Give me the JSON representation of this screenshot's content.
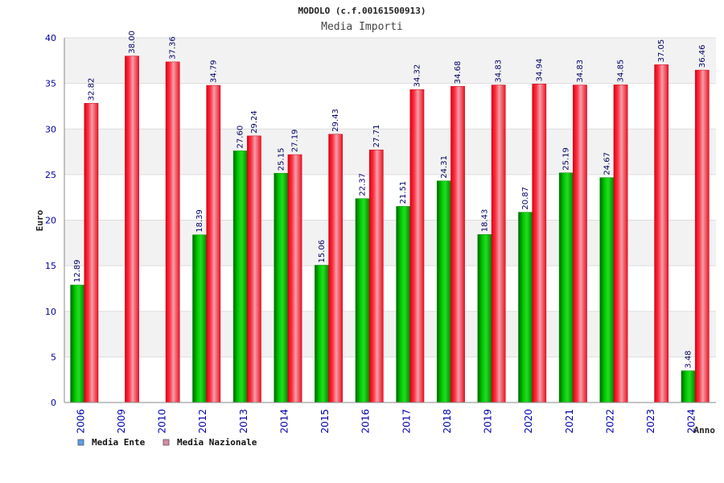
{
  "chart_data": {
    "type": "bar",
    "title": "MODOLO (c.f.00161500913)",
    "subtitle": "Media Importi",
    "xlabel": "Anno",
    "ylabel": "Euro",
    "ylim": [
      0,
      40
    ],
    "yticks": [
      "0",
      "5",
      "10",
      "15",
      "20",
      "25",
      "30",
      "35",
      "40"
    ],
    "categories": [
      "2006",
      "2009",
      "2010",
      "2012",
      "2013",
      "2014",
      "2015",
      "2016",
      "2017",
      "2018",
      "2019",
      "2020",
      "2021",
      "2022",
      "2023",
      "2024"
    ],
    "series": [
      {
        "name": "Media Ente",
        "color": "#00aa00",
        "values": [
          12.89,
          null,
          null,
          18.39,
          27.6,
          25.15,
          15.06,
          22.37,
          21.51,
          24.31,
          18.43,
          20.87,
          25.19,
          24.67,
          null,
          3.48
        ],
        "labels": [
          "12.89",
          "",
          "",
          "18.39",
          "27.60",
          "25.15",
          "15.06",
          "22.37",
          "21.51",
          "24.31",
          "18.43",
          "20.87",
          "25.19",
          "24.67",
          "",
          "3.48"
        ]
      },
      {
        "name": "Media Nazionale",
        "color": "#ee1122",
        "values": [
          32.82,
          38.0,
          37.36,
          34.79,
          29.24,
          27.19,
          29.43,
          27.71,
          34.32,
          34.68,
          34.83,
          34.94,
          34.83,
          34.85,
          37.05,
          36.46
        ],
        "labels": [
          "32.82",
          "38.00",
          "37.36",
          "34.79",
          "29.24",
          "27.19",
          "29.43",
          "27.71",
          "34.32",
          "34.68",
          "34.83",
          "34.94",
          "34.83",
          "34.85",
          "37.05",
          "36.46"
        ]
      }
    ],
    "legend": [
      {
        "label": "Media Ente",
        "color": "#5aa0e6"
      },
      {
        "label": "Media Nazionale",
        "color": "#d98aa6"
      }
    ],
    "legend_position": "bottom-left",
    "grid": true,
    "background_bands": [
      "#f2f2f2",
      "#ffffff"
    ]
  }
}
